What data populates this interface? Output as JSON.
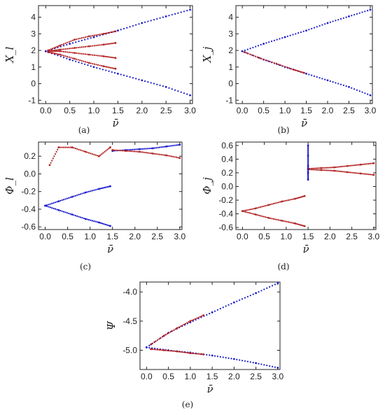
{
  "colors": {
    "axis": "#222222",
    "blue": "#1a1acc",
    "red": "#b22222",
    "pink": "#f4b6c2",
    "black": "#222222"
  },
  "chart_data": [
    {
      "type": "scatter",
      "panel": "a",
      "caption": "(a)",
      "ylabel": "X_l",
      "xlabel": "ν̄",
      "xlim": [
        -0.15,
        3.05
      ],
      "ylim": [
        -1.2,
        4.7
      ],
      "xticks": [
        "0.0",
        "0.5",
        "1.0",
        "1.5",
        "2.0",
        "2.5",
        "3.0"
      ],
      "yticks": [
        "-1",
        "0",
        "1",
        "2",
        "3",
        "4"
      ],
      "series": [
        {
          "color": "blue",
          "x": [
            0.0,
            0.5,
            1.0,
            1.5,
            2.0,
            2.5,
            3.0
          ],
          "y": [
            1.95,
            2.4,
            2.8,
            3.2,
            3.65,
            4.05,
            4.45
          ]
        },
        {
          "color": "blue",
          "x": [
            0.0,
            0.5,
            1.0,
            1.5,
            2.0,
            2.5,
            3.0
          ],
          "y": [
            1.95,
            1.45,
            1.0,
            0.6,
            0.2,
            -0.2,
            -0.7
          ]
        },
        {
          "color": "red",
          "x": [
            0.05,
            0.3,
            0.6,
            0.9,
            1.2,
            1.45
          ],
          "y": [
            2.0,
            2.3,
            2.65,
            2.85,
            3.0,
            3.15
          ]
        },
        {
          "color": "red",
          "x": [
            0.05,
            0.3,
            0.6,
            0.9,
            1.2,
            1.45
          ],
          "y": [
            1.9,
            1.75,
            1.5,
            1.25,
            1.05,
            0.9
          ]
        },
        {
          "color": "red",
          "x": [
            0.05,
            0.3,
            0.6,
            0.9,
            1.2,
            1.45
          ],
          "y": [
            1.95,
            2.05,
            2.15,
            2.25,
            2.35,
            2.45
          ]
        },
        {
          "color": "red",
          "x": [
            0.05,
            0.3,
            0.6,
            0.9,
            1.2,
            1.45
          ],
          "y": [
            1.95,
            1.95,
            1.85,
            1.75,
            1.65,
            1.55
          ]
        }
      ]
    },
    {
      "type": "scatter",
      "panel": "b",
      "caption": "(b)",
      "ylabel": "X_j",
      "xlabel": "ν̄",
      "xlim": [
        -0.15,
        3.05
      ],
      "ylim": [
        -1.2,
        4.7
      ],
      "xticks": [
        "0.0",
        "0.5",
        "1.0",
        "1.5",
        "2.0",
        "2.5",
        "3.0"
      ],
      "yticks": [
        "-1",
        "0",
        "1",
        "2",
        "3",
        "4"
      ],
      "series": [
        {
          "color": "blue",
          "x": [
            0.0,
            0.5,
            1.0,
            1.5,
            2.0,
            2.5,
            3.0
          ],
          "y": [
            1.95,
            2.4,
            2.8,
            3.2,
            3.65,
            4.05,
            4.45
          ]
        },
        {
          "color": "blue",
          "x": [
            0.0,
            0.5,
            1.0,
            1.5,
            2.0,
            2.5,
            3.0
          ],
          "y": [
            1.95,
            1.45,
            1.0,
            0.6,
            0.2,
            -0.2,
            -0.7
          ]
        },
        {
          "color": "red",
          "x": [
            0.05,
            0.4,
            0.8,
            1.2,
            1.45
          ],
          "y": [
            1.9,
            1.55,
            1.2,
            0.85,
            0.65
          ]
        }
      ]
    },
    {
      "type": "scatter",
      "panel": "c",
      "caption": "(c)",
      "ylabel": "Φ_l",
      "xlabel": "ν̄",
      "xlim": [
        -0.15,
        3.05
      ],
      "ylim": [
        -0.63,
        0.36
      ],
      "xticks": [
        "0.0",
        "0.5",
        "1.0",
        "1.5",
        "2.0",
        "2.5",
        "3.0"
      ],
      "yticks": [
        "-0.6",
        "-0.4",
        "-0.2",
        "0.0",
        "0.2"
      ],
      "series": [
        {
          "color": "blue",
          "x": [
            0.0,
            0.3,
            0.6,
            0.9,
            1.2,
            1.45
          ],
          "y": [
            -0.36,
            -0.31,
            -0.26,
            -0.21,
            -0.17,
            -0.14
          ]
        },
        {
          "color": "blue",
          "x": [
            0.0,
            0.3,
            0.6,
            0.9,
            1.2,
            1.45
          ],
          "y": [
            -0.36,
            -0.41,
            -0.46,
            -0.51,
            -0.55,
            -0.59
          ]
        },
        {
          "color": "blue",
          "x": [
            1.5,
            1.8,
            2.1,
            2.4,
            2.7,
            3.0
          ],
          "y": [
            0.26,
            0.27,
            0.28,
            0.29,
            0.31,
            0.33
          ]
        },
        {
          "color": "red",
          "x": [
            1.5,
            1.8,
            2.1,
            2.4,
            2.7,
            3.0
          ],
          "y": [
            0.27,
            0.26,
            0.25,
            0.23,
            0.21,
            0.18
          ]
        },
        {
          "color": "red",
          "x": [
            0.1,
            0.3,
            0.6,
            0.9,
            1.2,
            1.45
          ],
          "y": [
            0.1,
            0.3,
            0.3,
            0.25,
            0.2,
            0.3
          ]
        }
      ]
    },
    {
      "type": "scatter",
      "panel": "d",
      "caption": "(d)",
      "ylabel": "Φ_j",
      "xlabel": "ν̄",
      "xlim": [
        -0.15,
        3.05
      ],
      "ylim": [
        -0.63,
        0.65
      ],
      "xticks": [
        "0.0",
        "0.5",
        "1.0",
        "1.5",
        "2.0",
        "2.5",
        "3.0"
      ],
      "yticks": [
        "-0.6",
        "-0.4",
        "-0.2",
        "0.0",
        "0.2",
        "0.4",
        "0.6"
      ],
      "series": [
        {
          "color": "red",
          "x": [
            0.0,
            0.3,
            0.6,
            0.9,
            1.2,
            1.42
          ],
          "y": [
            -0.36,
            -0.32,
            -0.27,
            -0.22,
            -0.18,
            -0.14
          ]
        },
        {
          "color": "red",
          "x": [
            0.0,
            0.3,
            0.6,
            0.9,
            1.2,
            1.42
          ],
          "y": [
            -0.36,
            -0.41,
            -0.46,
            -0.5,
            -0.54,
            -0.58
          ]
        },
        {
          "color": "red",
          "x": [
            1.5,
            1.8,
            2.1,
            2.4,
            2.7,
            3.0
          ],
          "y": [
            0.26,
            0.27,
            0.28,
            0.3,
            0.32,
            0.34
          ]
        },
        {
          "color": "red",
          "x": [
            1.5,
            1.8,
            2.1,
            2.4,
            2.7,
            3.0
          ],
          "y": [
            0.25,
            0.24,
            0.23,
            0.21,
            0.19,
            0.17
          ]
        },
        {
          "color": "blue",
          "x": [
            1.5,
            1.5,
            1.5,
            1.5,
            1.5
          ],
          "y": [
            0.1,
            0.2,
            0.3,
            0.45,
            0.6
          ]
        }
      ]
    },
    {
      "type": "scatter",
      "panel": "e",
      "caption": "(e)",
      "ylabel": "Ψ",
      "xlabel": "ν̄",
      "xlim": [
        -0.15,
        3.05
      ],
      "ylim": [
        -5.33,
        -3.83
      ],
      "xticks": [
        "0.0",
        "0.5",
        "1.0",
        "1.5",
        "2.0",
        "2.5",
        "3.0"
      ],
      "yticks": [
        "-5.0",
        "-4.5",
        "-4.0"
      ],
      "series": [
        {
          "color": "blue",
          "x": [
            0.0,
            0.5,
            1.0,
            1.5,
            2.0,
            2.5,
            3.0
          ],
          "y": [
            -4.95,
            -4.7,
            -4.52,
            -4.35,
            -4.18,
            -4.02,
            -3.85
          ]
        },
        {
          "color": "blue",
          "x": [
            0.0,
            0.5,
            1.0,
            1.5,
            2.0,
            2.5,
            3.0
          ],
          "y": [
            -4.95,
            -5.0,
            -5.04,
            -5.09,
            -5.15,
            -5.22,
            -5.3
          ]
        },
        {
          "color": "red",
          "x": [
            0.1,
            0.4,
            0.7,
            1.0,
            1.3
          ],
          "y": [
            -4.9,
            -4.75,
            -4.62,
            -4.5,
            -4.4
          ]
        },
        {
          "color": "red",
          "x": [
            0.1,
            0.4,
            0.7,
            1.0,
            1.3
          ],
          "y": [
            -4.98,
            -5.0,
            -5.02,
            -5.05,
            -5.07
          ]
        }
      ]
    }
  ]
}
